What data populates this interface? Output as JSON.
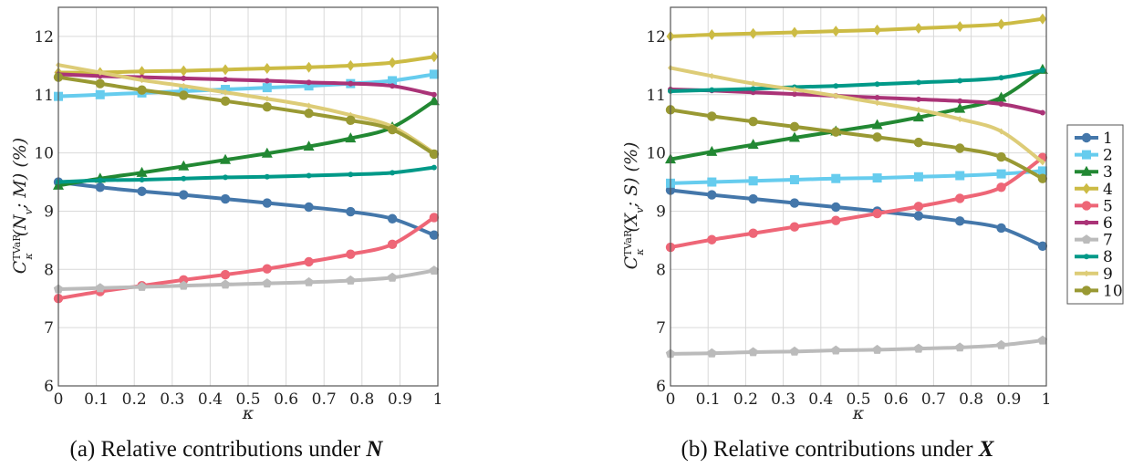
{
  "chart_data": [
    {
      "type": "line",
      "caption": "(a) Relative contributions under ",
      "caption_bold": "N",
      "xlabel": "κ",
      "ylabel_main": "C",
      "ylabel_sup": "TVaR",
      "ylabel_sub": "κ",
      "ylabel_args": "(N",
      "ylabel_args_sub": "v",
      "ylabel_rest": "; M) (%)",
      "xlim": [
        0,
        1
      ],
      "ylim": [
        6,
        12.5
      ],
      "xticks": [
        "0",
        "0.1",
        "0.2",
        "0.3",
        "0.4",
        "0.5",
        "0.6",
        "0.7",
        "0.8",
        "0.9",
        "1"
      ],
      "yticks": [
        "6",
        "7",
        "8",
        "9",
        "10",
        "11",
        "12"
      ],
      "grid": true,
      "x": [
        0,
        0.11,
        0.22,
        0.33,
        0.44,
        0.55,
        0.66,
        0.77,
        0.88,
        0.99
      ],
      "series": [
        {
          "name": "1",
          "values": [
            9.5,
            9.41,
            9.34,
            9.28,
            9.21,
            9.14,
            9.07,
            8.99,
            8.87,
            8.59
          ]
        },
        {
          "name": "2",
          "values": [
            10.97,
            11.0,
            11.03,
            11.06,
            11.09,
            11.12,
            11.15,
            11.19,
            11.24,
            11.35
          ]
        },
        {
          "name": "3",
          "values": [
            9.44,
            9.56,
            9.66,
            9.77,
            9.88,
            9.99,
            10.11,
            10.25,
            10.44,
            10.89
          ]
        },
        {
          "name": "4",
          "values": [
            11.38,
            11.38,
            11.4,
            11.41,
            11.43,
            11.45,
            11.47,
            11.5,
            11.55,
            11.65
          ]
        },
        {
          "name": "5",
          "values": [
            7.5,
            7.62,
            7.72,
            7.82,
            7.91,
            8.01,
            8.13,
            8.26,
            8.43,
            8.89
          ]
        },
        {
          "name": "6",
          "values": [
            11.35,
            11.32,
            11.3,
            11.28,
            11.26,
            11.24,
            11.21,
            11.19,
            11.15,
            11.0
          ]
        },
        {
          "name": "7",
          "values": [
            7.66,
            7.68,
            7.7,
            7.72,
            7.74,
            7.76,
            7.78,
            7.81,
            7.86,
            7.98
          ]
        },
        {
          "name": "8",
          "values": [
            9.5,
            9.53,
            9.54,
            9.56,
            9.58,
            9.59,
            9.61,
            9.63,
            9.66,
            9.75
          ]
        },
        {
          "name": "9",
          "values": [
            11.51,
            11.38,
            11.25,
            11.15,
            11.04,
            10.93,
            10.81,
            10.65,
            10.45,
            10.0
          ]
        },
        {
          "name": "10",
          "values": [
            11.3,
            11.19,
            11.08,
            10.99,
            10.89,
            10.79,
            10.68,
            10.56,
            10.4,
            9.98
          ]
        }
      ]
    },
    {
      "type": "line",
      "caption": "(b) Relative contributions under ",
      "caption_bold": "X",
      "xlabel": "κ",
      "ylabel_main": "C",
      "ylabel_sup": "TVaR",
      "ylabel_sub": "κ",
      "ylabel_args": "(X",
      "ylabel_args_sub": "v",
      "ylabel_rest": "; S) (%)",
      "xlim": [
        0,
        1
      ],
      "ylim": [
        6,
        12.5
      ],
      "xticks": [
        "0",
        "0.1",
        "0.2",
        "0.3",
        "0.4",
        "0.5",
        "0.6",
        "0.7",
        "0.8",
        "0.9",
        "1"
      ],
      "yticks": [
        "6",
        "7",
        "8",
        "9",
        "10",
        "11",
        "12"
      ],
      "grid": true,
      "x": [
        0,
        0.11,
        0.22,
        0.33,
        0.44,
        0.55,
        0.66,
        0.77,
        0.88,
        0.99
      ],
      "series": [
        {
          "name": "1",
          "values": [
            9.36,
            9.28,
            9.21,
            9.14,
            9.07,
            9.0,
            8.92,
            8.83,
            8.71,
            8.4
          ]
        },
        {
          "name": "2",
          "values": [
            9.48,
            9.5,
            9.52,
            9.54,
            9.56,
            9.57,
            9.59,
            9.61,
            9.64,
            9.69
          ]
        },
        {
          "name": "3",
          "values": [
            9.89,
            10.02,
            10.14,
            10.26,
            10.37,
            10.48,
            10.61,
            10.76,
            10.95,
            11.43
          ]
        },
        {
          "name": "4",
          "values": [
            12.0,
            12.03,
            12.05,
            12.07,
            12.09,
            12.11,
            12.14,
            12.17,
            12.21,
            12.3
          ]
        },
        {
          "name": "5",
          "values": [
            8.38,
            8.51,
            8.62,
            8.73,
            8.84,
            8.96,
            9.08,
            9.22,
            9.41,
            9.92
          ]
        },
        {
          "name": "6",
          "values": [
            11.09,
            11.07,
            11.04,
            11.01,
            10.98,
            10.95,
            10.92,
            10.89,
            10.84,
            10.69
          ]
        },
        {
          "name": "7",
          "values": [
            6.55,
            6.56,
            6.58,
            6.59,
            6.61,
            6.62,
            6.64,
            6.66,
            6.7,
            6.78
          ]
        },
        {
          "name": "8",
          "values": [
            11.06,
            11.08,
            11.1,
            11.13,
            11.15,
            11.18,
            11.21,
            11.24,
            11.29,
            11.42
          ]
        },
        {
          "name": "9",
          "values": [
            11.46,
            11.32,
            11.19,
            11.09,
            10.98,
            10.86,
            10.74,
            10.58,
            10.37,
            9.84
          ]
        },
        {
          "name": "10",
          "values": [
            10.74,
            10.63,
            10.54,
            10.45,
            10.36,
            10.27,
            10.18,
            10.08,
            9.93,
            9.56
          ]
        }
      ]
    }
  ],
  "legend": {
    "placement": "right",
    "entries": [
      {
        "label": "1",
        "color": "#4477aa",
        "marker": "circle"
      },
      {
        "label": "2",
        "color": "#66ccee",
        "marker": "square"
      },
      {
        "label": "3",
        "color": "#228833",
        "marker": "triangle"
      },
      {
        "label": "4",
        "color": "#ccbb44",
        "marker": "diamond"
      },
      {
        "label": "5",
        "color": "#ee6677",
        "marker": "circle"
      },
      {
        "label": "6",
        "color": "#aa3377",
        "marker": "small-circle"
      },
      {
        "label": "7",
        "color": "#bbbbbb",
        "marker": "pentagon"
      },
      {
        "label": "8",
        "color": "#009988",
        "marker": "small-circle"
      },
      {
        "label": "9",
        "color": "#ddcc77",
        "marker": "small-diamond"
      },
      {
        "label": "10",
        "color": "#999933",
        "marker": "circle"
      }
    ]
  }
}
